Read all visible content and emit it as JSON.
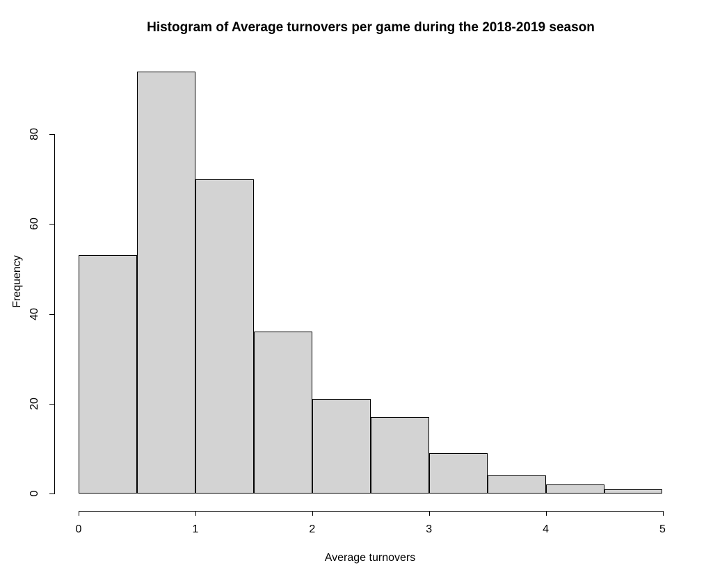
{
  "chart_data": {
    "type": "bar",
    "subtype": "histogram",
    "title": "Histogram of Average turnovers per game during the 2018-2019 season",
    "xlabel": "Average turnovers",
    "ylabel": "Frequency",
    "breaks": [
      0,
      0.5,
      1,
      1.5,
      2,
      2.5,
      3,
      3.5,
      4,
      4.5,
      5
    ],
    "counts": [
      53,
      94,
      70,
      36,
      21,
      17,
      9,
      4,
      2,
      1
    ],
    "x_ticks": [
      0,
      1,
      2,
      3,
      4,
      5
    ],
    "y_ticks": [
      0,
      20,
      40,
      60,
      80
    ],
    "xlim": [
      0,
      5
    ],
    "ylim": [
      0,
      94
    ],
    "grid": false,
    "legend": null,
    "bar_fill_color": "#d3d3d3",
    "bar_border_color": "#000000",
    "axis_color": "#000000",
    "background_color": "#ffffff"
  }
}
